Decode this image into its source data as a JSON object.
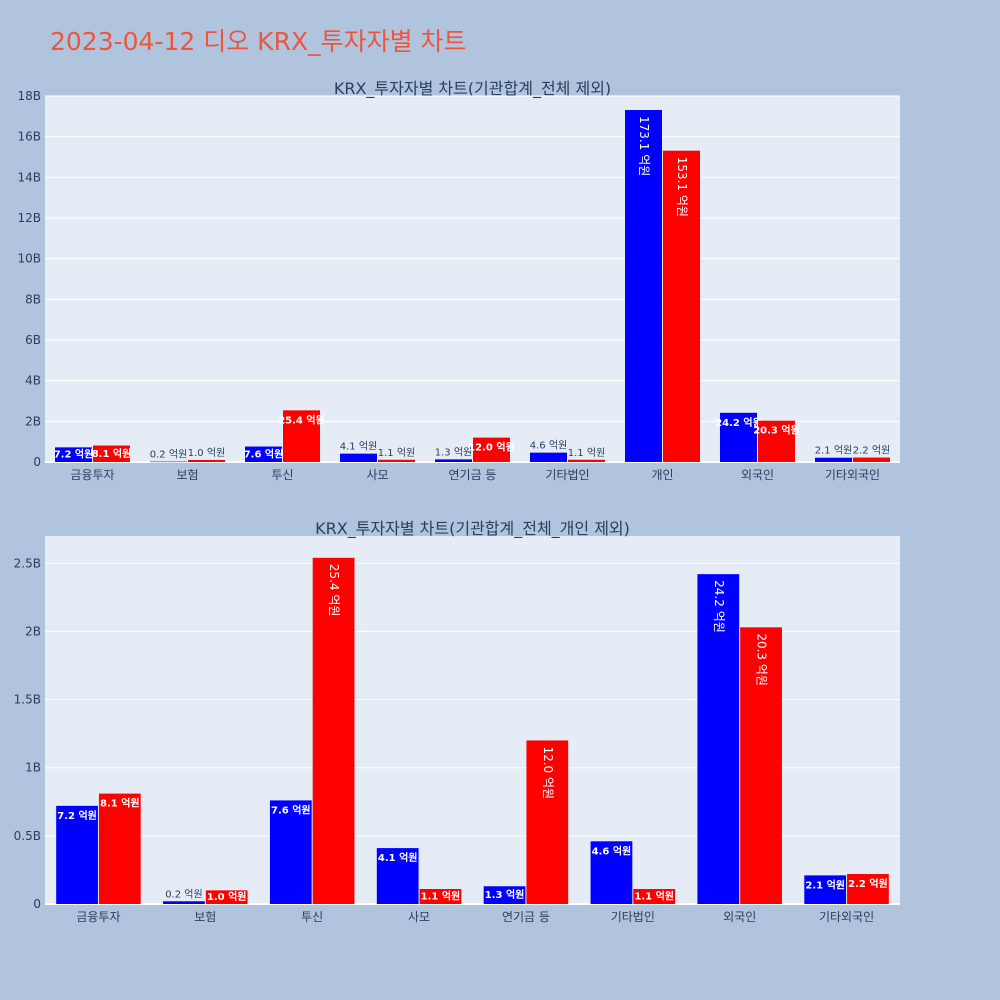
{
  "title": "2023-04-12 디오 KRX_투자자별 차트",
  "colors": {
    "background": "#b0c4de",
    "plot_bg": "#e5ecf6",
    "grid": "#ffffff",
    "series_blue": "#0000ff",
    "series_red": "#ff0000",
    "title": "#ef553b",
    "text": "#2a3f5f"
  },
  "chart_data": [
    {
      "type": "bar",
      "title": "KRX_투자자별 차트(기관합계_전체 제외)",
      "categories": [
        "금융투자",
        "보험",
        "투신",
        "사모",
        "연기금 등",
        "기타법인",
        "개인",
        "외국인",
        "기타외국인"
      ],
      "series": [
        {
          "color": "#0000ff",
          "values": [
            720000000,
            20000000,
            760000000,
            410000000,
            130000000,
            460000000,
            17310000000,
            2420000000,
            210000000
          ],
          "labels": [
            "7.2 억원",
            "0.2 억원",
            "7.6 억원",
            "4.1 억원",
            "1.3 억원",
            "4.6 억원",
            "173.1 억원",
            "24.2 억원",
            "2.1 억원"
          ]
        },
        {
          "color": "#ff0000",
          "values": [
            810000000,
            100000000,
            2540000000,
            110000000,
            1200000000,
            110000000,
            15310000000,
            2030000000,
            220000000
          ],
          "labels": [
            "8.1 억원",
            "1.0 억원",
            "25.4 억원",
            "1.1 억원",
            "12.0 억원",
            "1.1 억원",
            "153.1 억원",
            "20.3 억원",
            "2.2 억원"
          ]
        }
      ],
      "ylim": [
        0,
        18000000000
      ],
      "yticks": [
        0,
        2000000000,
        4000000000,
        6000000000,
        8000000000,
        10000000000,
        12000000000,
        14000000000,
        16000000000,
        18000000000
      ],
      "ytick_labels": [
        "0",
        "2B",
        "4B",
        "6B",
        "8B",
        "10B",
        "12B",
        "14B",
        "16B",
        "18B"
      ],
      "grid": true
    },
    {
      "type": "bar",
      "title": "KRX_투자자별 차트(기관합계_전체_개인 제외)",
      "categories": [
        "금융투자",
        "보험",
        "투신",
        "사모",
        "연기금 등",
        "기타법인",
        "외국인",
        "기타외국인"
      ],
      "series": [
        {
          "color": "#0000ff",
          "values": [
            720000000,
            20000000,
            760000000,
            410000000,
            130000000,
            460000000,
            2420000000,
            210000000
          ],
          "labels": [
            "7.2 억원",
            "0.2 억원",
            "7.6 억원",
            "4.1 억원",
            "1.3 억원",
            "4.6 억원",
            "24.2 억원",
            "2.1 억원"
          ]
        },
        {
          "color": "#ff0000",
          "values": [
            810000000,
            100000000,
            2540000000,
            110000000,
            1200000000,
            110000000,
            2030000000,
            220000000
          ],
          "labels": [
            "8.1 억원",
            "1.0 억원",
            "25.4 억원",
            "1.1 억원",
            "12.0 억원",
            "1.1 억원",
            "20.3 억원",
            "2.2 억원"
          ]
        }
      ],
      "ylim": [
        0,
        2700000000
      ],
      "yticks": [
        0,
        500000000,
        1000000000,
        1500000000,
        2000000000,
        2500000000
      ],
      "ytick_labels": [
        "0",
        "0.5B",
        "1B",
        "1.5B",
        "2B",
        "2.5B"
      ],
      "grid": true
    }
  ]
}
